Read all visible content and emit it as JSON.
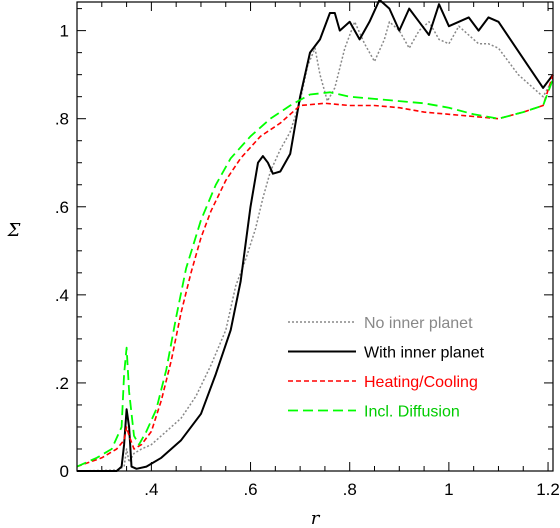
{
  "chart_data": {
    "type": "line",
    "xlabel": "r",
    "ylabel": "Σ",
    "xlim": [
      0.25,
      1.21
    ],
    "ylim": [
      0,
      1.065
    ],
    "x_ticks": [
      {
        "value": 0.4,
        "label": ".4"
      },
      {
        "value": 0.6,
        "label": ".6"
      },
      {
        "value": 0.8,
        "label": ".8"
      },
      {
        "value": 1.0,
        "label": "1"
      },
      {
        "value": 1.2,
        "label": "1.2"
      }
    ],
    "y_ticks": [
      {
        "value": 0,
        "label": "0"
      },
      {
        "value": 0.2,
        "label": ".2"
      },
      {
        "value": 0.4,
        "label": ".4"
      },
      {
        "value": 0.6,
        "label": ".6"
      },
      {
        "value": 0.8,
        "label": ".8"
      },
      {
        "value": 1.0,
        "label": "1"
      }
    ],
    "grid": false,
    "legend_position": "bottom-right",
    "series": [
      {
        "name": "No inner planet",
        "color": "#888888",
        "dash": "dotted",
        "points": [
          [
            0.25,
            0.0
          ],
          [
            0.33,
            0.002
          ],
          [
            0.345,
            0.01
          ],
          [
            0.35,
            0.05
          ],
          [
            0.355,
            0.02
          ],
          [
            0.365,
            0.04
          ],
          [
            0.38,
            0.05
          ],
          [
            0.4,
            0.06
          ],
          [
            0.43,
            0.09
          ],
          [
            0.46,
            0.12
          ],
          [
            0.49,
            0.17
          ],
          [
            0.52,
            0.24
          ],
          [
            0.55,
            0.32
          ],
          [
            0.57,
            0.42
          ],
          [
            0.59,
            0.48
          ],
          [
            0.61,
            0.55
          ],
          [
            0.625,
            0.62
          ],
          [
            0.64,
            0.68
          ],
          [
            0.66,
            0.73
          ],
          [
            0.68,
            0.77
          ],
          [
            0.7,
            0.84
          ],
          [
            0.715,
            0.92
          ],
          [
            0.73,
            0.96
          ],
          [
            0.74,
            0.9
          ],
          [
            0.755,
            0.84
          ],
          [
            0.77,
            0.87
          ],
          [
            0.79,
            0.96
          ],
          [
            0.81,
            1.02
          ],
          [
            0.83,
            0.97
          ],
          [
            0.85,
            0.93
          ],
          [
            0.87,
            0.98
          ],
          [
            0.88,
            1.02
          ],
          [
            0.9,
            1.0
          ],
          [
            0.92,
            0.96
          ],
          [
            0.94,
            1.0
          ],
          [
            0.96,
            1.02
          ],
          [
            0.98,
            0.98
          ],
          [
            1.0,
            0.97
          ],
          [
            1.02,
            1.01
          ],
          [
            1.04,
            0.99
          ],
          [
            1.06,
            0.97
          ],
          [
            1.08,
            0.97
          ],
          [
            1.1,
            0.96
          ],
          [
            1.14,
            0.9
          ],
          [
            1.17,
            0.87
          ],
          [
            1.19,
            0.85
          ],
          [
            1.21,
            0.89
          ]
        ]
      },
      {
        "name": "With inner planet",
        "color": "#000000",
        "dash": "solid",
        "points": [
          [
            0.25,
            0.0
          ],
          [
            0.33,
            0.0
          ],
          [
            0.34,
            0.01
          ],
          [
            0.345,
            0.06
          ],
          [
            0.35,
            0.14
          ],
          [
            0.355,
            0.1
          ],
          [
            0.36,
            0.01
          ],
          [
            0.37,
            0.005
          ],
          [
            0.39,
            0.01
          ],
          [
            0.42,
            0.03
          ],
          [
            0.46,
            0.07
          ],
          [
            0.5,
            0.13
          ],
          [
            0.53,
            0.22
          ],
          [
            0.56,
            0.32
          ],
          [
            0.58,
            0.43
          ],
          [
            0.6,
            0.6
          ],
          [
            0.615,
            0.7
          ],
          [
            0.625,
            0.715
          ],
          [
            0.635,
            0.7
          ],
          [
            0.645,
            0.675
          ],
          [
            0.66,
            0.68
          ],
          [
            0.68,
            0.72
          ],
          [
            0.7,
            0.85
          ],
          [
            0.72,
            0.95
          ],
          [
            0.74,
            0.98
          ],
          [
            0.76,
            1.04
          ],
          [
            0.77,
            1.04
          ],
          [
            0.78,
            1.0
          ],
          [
            0.8,
            1.02
          ],
          [
            0.82,
            0.98
          ],
          [
            0.84,
            1.02
          ],
          [
            0.86,
            1.07
          ],
          [
            0.88,
            1.05
          ],
          [
            0.9,
            1.0
          ],
          [
            0.92,
            1.05
          ],
          [
            0.94,
            1.02
          ],
          [
            0.96,
            0.99
          ],
          [
            0.98,
            1.06
          ],
          [
            1.0,
            1.01
          ],
          [
            1.02,
            1.02
          ],
          [
            1.04,
            1.03
          ],
          [
            1.06,
            1.0
          ],
          [
            1.08,
            1.03
          ],
          [
            1.1,
            1.02
          ],
          [
            1.13,
            0.97
          ],
          [
            1.16,
            0.92
          ],
          [
            1.19,
            0.87
          ],
          [
            1.21,
            0.9
          ]
        ]
      },
      {
        "name": "Heating/Cooling",
        "color": "#ff0000",
        "dash": "dashed",
        "points": [
          [
            0.25,
            0.01
          ],
          [
            0.3,
            0.03
          ],
          [
            0.33,
            0.05
          ],
          [
            0.345,
            0.07
          ],
          [
            0.35,
            0.1
          ],
          [
            0.355,
            0.08
          ],
          [
            0.365,
            0.05
          ],
          [
            0.38,
            0.06
          ],
          [
            0.4,
            0.09
          ],
          [
            0.42,
            0.16
          ],
          [
            0.44,
            0.25
          ],
          [
            0.46,
            0.36
          ],
          [
            0.48,
            0.45
          ],
          [
            0.5,
            0.53
          ],
          [
            0.52,
            0.59
          ],
          [
            0.55,
            0.66
          ],
          [
            0.58,
            0.71
          ],
          [
            0.62,
            0.76
          ],
          [
            0.66,
            0.79
          ],
          [
            0.7,
            0.83
          ],
          [
            0.75,
            0.835
          ],
          [
            0.8,
            0.83
          ],
          [
            0.85,
            0.83
          ],
          [
            0.9,
            0.825
          ],
          [
            0.95,
            0.815
          ],
          [
            1.0,
            0.81
          ],
          [
            1.05,
            0.805
          ],
          [
            1.1,
            0.8
          ],
          [
            1.15,
            0.815
          ],
          [
            1.19,
            0.83
          ],
          [
            1.21,
            0.9
          ]
        ]
      },
      {
        "name": "Incl. Diffusion",
        "color": "#00ff00",
        "dash": "long-dashed",
        "points": [
          [
            0.25,
            0.01
          ],
          [
            0.29,
            0.03
          ],
          [
            0.32,
            0.05
          ],
          [
            0.34,
            0.1
          ],
          [
            0.345,
            0.22
          ],
          [
            0.35,
            0.28
          ],
          [
            0.355,
            0.18
          ],
          [
            0.365,
            0.08
          ],
          [
            0.375,
            0.06
          ],
          [
            0.39,
            0.09
          ],
          [
            0.41,
            0.14
          ],
          [
            0.43,
            0.23
          ],
          [
            0.45,
            0.35
          ],
          [
            0.47,
            0.46
          ],
          [
            0.5,
            0.57
          ],
          [
            0.53,
            0.65
          ],
          [
            0.56,
            0.71
          ],
          [
            0.6,
            0.76
          ],
          [
            0.64,
            0.8
          ],
          [
            0.68,
            0.83
          ],
          [
            0.72,
            0.855
          ],
          [
            0.76,
            0.86
          ],
          [
            0.8,
            0.85
          ],
          [
            0.85,
            0.845
          ],
          [
            0.9,
            0.84
          ],
          [
            0.95,
            0.835
          ],
          [
            1.0,
            0.825
          ],
          [
            1.05,
            0.81
          ],
          [
            1.1,
            0.8
          ],
          [
            1.15,
            0.815
          ],
          [
            1.19,
            0.83
          ],
          [
            1.21,
            0.89
          ]
        ]
      }
    ]
  }
}
